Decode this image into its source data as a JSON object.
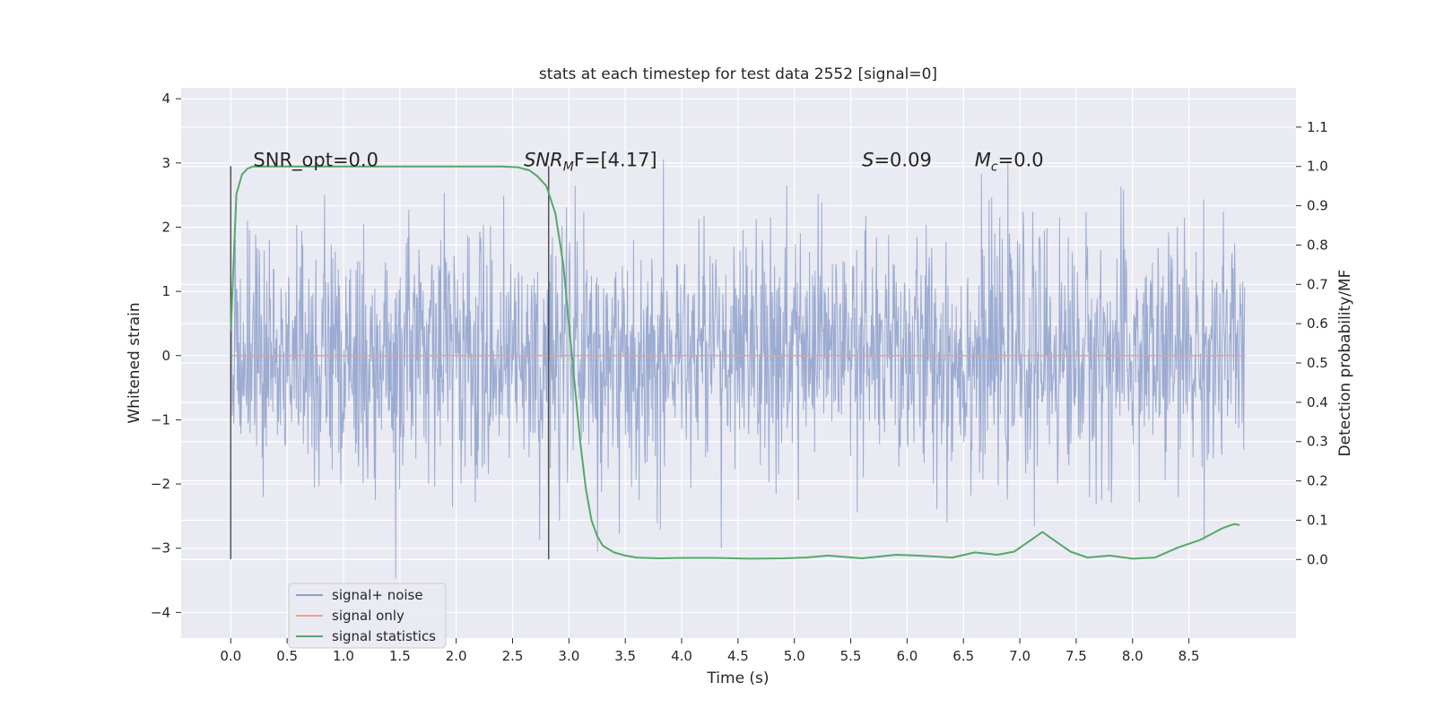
{
  "chart_data": {
    "type": "line",
    "title": "stats at each timestep for test data 2552 [signal=0]",
    "xlabel": "Time (s)",
    "ylabel_left": "Whitened strain",
    "ylabel_right": "Detection probability/MF",
    "xlim": [
      -0.44,
      9.45
    ],
    "ylim_left": [
      -4.4,
      4.17
    ],
    "ylim_right": [
      -0.2,
      1.2
    ],
    "x_ticks": [
      "0.0",
      "0.5",
      "1.0",
      "1.5",
      "2.0",
      "2.5",
      "3.0",
      "3.5",
      "4.0",
      "4.5",
      "5.0",
      "5.5",
      "6.0",
      "6.5",
      "7.0",
      "7.5",
      "8.0",
      "8.5"
    ],
    "y_ticks_left": [
      "4",
      "3",
      "2",
      "1",
      "0",
      "−1",
      "−2",
      "−3",
      "−4"
    ],
    "y_ticks_right": [
      "1.1",
      "1.0",
      "0.9",
      "0.8",
      "0.7",
      "0.6",
      "0.5",
      "0.4",
      "0.3",
      "0.2",
      "0.1",
      "0.0"
    ],
    "grid": true,
    "legend_placement": "lower-left",
    "series": [
      {
        "name": "signal+ noise",
        "color": "#8da0cb",
        "x_range": [
          0.0,
          9.0
        ],
        "note_values": "dense noise, core approx ±1.8, peaks to about ±3.8"
      },
      {
        "name": "signal only",
        "color": "#e8a28a",
        "x": [
          0.0,
          9.0
        ],
        "y": [
          0.0,
          0.0
        ]
      },
      {
        "name": "signal statistics",
        "color": "#55a868",
        "x": [
          0.0,
          0.05,
          0.1,
          0.15,
          0.2,
          0.3,
          0.5,
          1.0,
          1.5,
          2.0,
          2.4,
          2.55,
          2.65,
          2.72,
          2.8,
          2.88,
          2.95,
          3.0,
          3.05,
          3.1,
          3.15,
          3.2,
          3.25,
          3.3,
          3.4,
          3.5,
          3.6,
          3.8,
          4.0,
          4.3,
          4.6,
          4.9,
          5.1,
          5.3,
          5.6,
          5.9,
          6.1,
          6.4,
          6.6,
          6.8,
          6.95,
          7.1,
          7.2,
          7.3,
          7.45,
          7.6,
          7.8,
          8.0,
          8.2,
          8.4,
          8.6,
          8.8,
          8.9,
          8.95
        ],
        "y": [
          0.58,
          0.93,
          0.98,
          0.995,
          1.0,
          1.0,
          1.0,
          1.0,
          1.0,
          1.0,
          1.0,
          0.998,
          0.99,
          0.975,
          0.95,
          0.88,
          0.75,
          0.6,
          0.45,
          0.3,
          0.18,
          0.1,
          0.06,
          0.035,
          0.018,
          0.01,
          0.005,
          0.003,
          0.004,
          0.004,
          0.002,
          0.003,
          0.005,
          0.01,
          0.003,
          0.012,
          0.01,
          0.005,
          0.018,
          0.012,
          0.02,
          0.05,
          0.07,
          0.05,
          0.02,
          0.005,
          0.01,
          0.002,
          0.005,
          0.03,
          0.05,
          0.08,
          0.09,
          0.088
        ]
      }
    ],
    "vertical_markers": [
      0.0,
      2.82
    ],
    "annotations": [
      {
        "prefix": "SNR_opt=0.0",
        "italic": "",
        "sub": "",
        "suffix": "",
        "x": 0.2,
        "y": 2.95
      },
      {
        "prefix": "",
        "italic": "SNR",
        "sub": "M",
        "suffix": "F=[4.17]",
        "x": 2.6,
        "y": 2.95
      },
      {
        "prefix": "",
        "italic": "S",
        "sub": "",
        "suffix": "=0.09",
        "x": 5.6,
        "y": 2.95
      },
      {
        "prefix": "",
        "italic": "M",
        "sub": "c",
        "suffix": "=0.0",
        "x": 6.6,
        "y": 2.95
      }
    ]
  }
}
